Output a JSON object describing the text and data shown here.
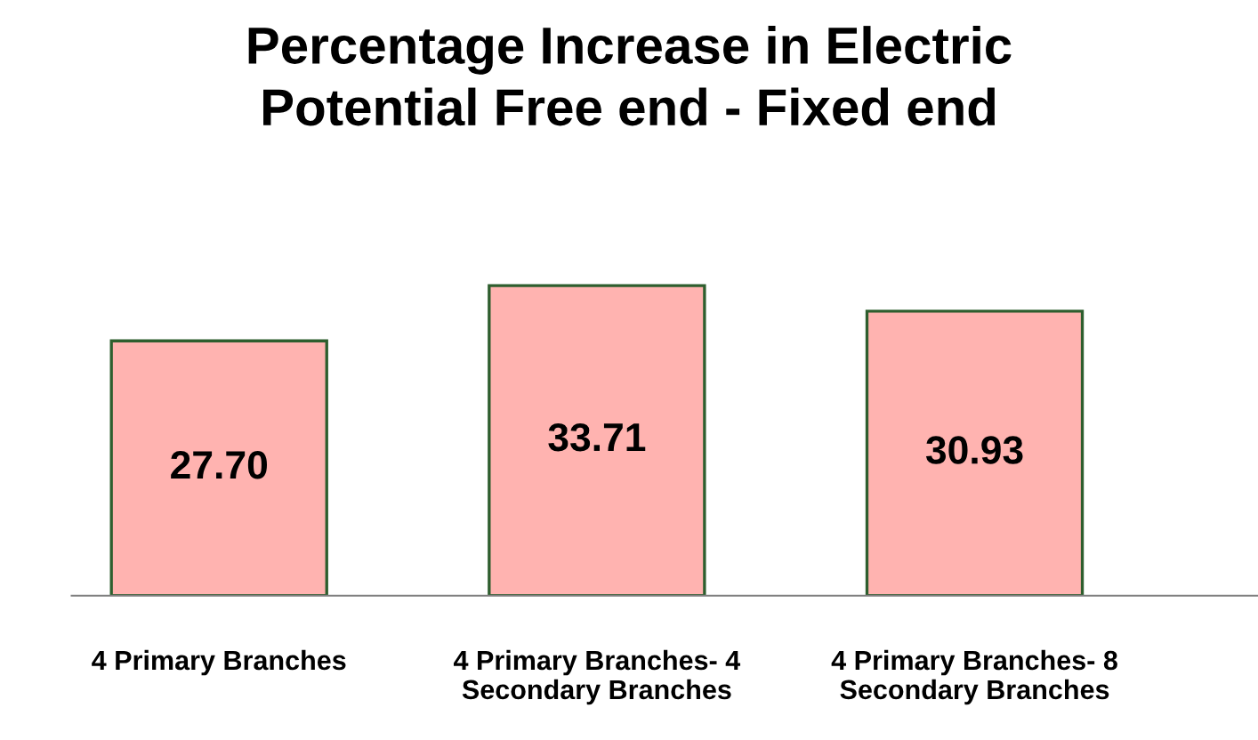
{
  "chart_data": {
    "type": "bar",
    "title": "Percentage Increase in Electric\nPotential Free end - Fixed end",
    "categories": [
      "4 Primary Branches",
      "4 Primary Branches- 4\nSecondary Branches",
      "4 Primary Branches- 8\nSecondary Branches"
    ],
    "values": [
      27.7,
      33.71,
      30.93
    ],
    "value_labels": [
      "27.70",
      "33.71",
      "30.93"
    ],
    "color": "#ffb3b0"
  }
}
